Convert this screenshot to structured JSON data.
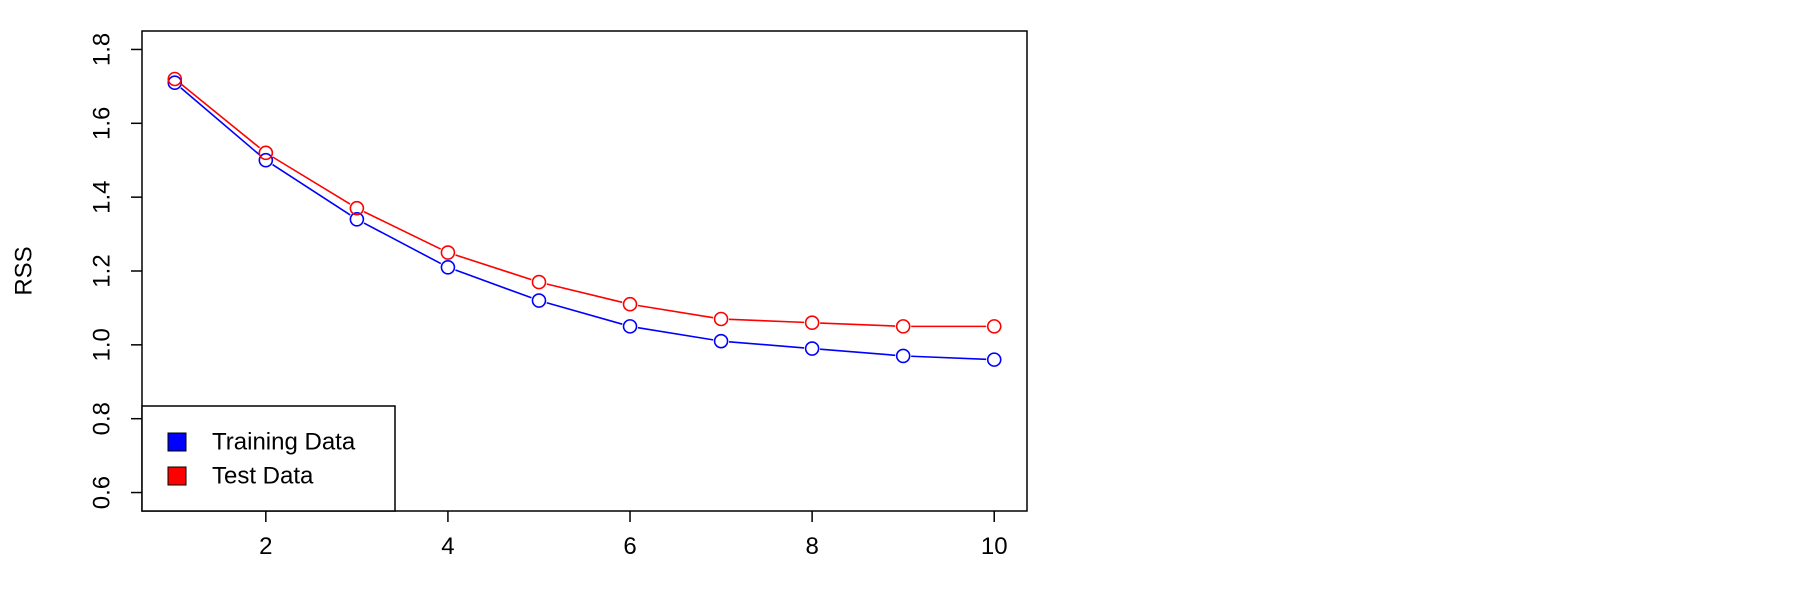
{
  "chart_data": {
    "type": "line",
    "title": "",
    "xlabel": "",
    "ylabel": "RSS",
    "x": [
      1,
      2,
      3,
      4,
      5,
      6,
      7,
      8,
      9,
      10
    ],
    "xlim": [
      0.64,
      10.36
    ],
    "ylim": [
      0.55,
      1.85
    ],
    "x_ticks": [
      2,
      4,
      6,
      8,
      10
    ],
    "x_tick_labels": [
      "2",
      "4",
      "6",
      "8",
      "10"
    ],
    "y_ticks": [
      0.6,
      0.8,
      1.0,
      1.2,
      1.4,
      1.6,
      1.8
    ],
    "y_tick_labels": [
      "0.6",
      "0.8",
      "1.0",
      "1.2",
      "1.4",
      "1.6",
      "1.8"
    ],
    "grid": false,
    "legend_position": "bottom-left",
    "series": [
      {
        "name": "Training Data",
        "color": "#0000FF",
        "marker": "open-circle",
        "values": [
          1.71,
          1.5,
          1.34,
          1.21,
          1.12,
          1.05,
          1.01,
          0.99,
          0.97,
          0.96
        ]
      },
      {
        "name": "Test Data",
        "color": "#FF0000",
        "marker": "open-circle",
        "values": [
          1.72,
          1.52,
          1.37,
          1.25,
          1.17,
          1.11,
          1.07,
          1.06,
          1.05,
          1.05
        ]
      }
    ]
  }
}
